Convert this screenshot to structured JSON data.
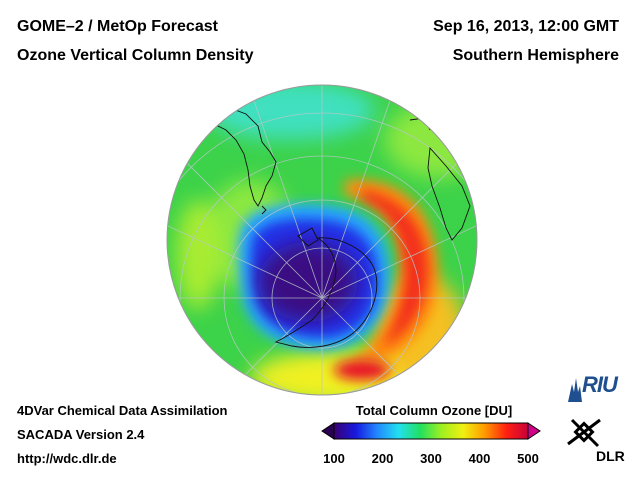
{
  "header": {
    "title_line1": "GOME–2 / MetOp Forecast",
    "title_line2": "Ozone Vertical Column Density",
    "date": "Sep 16, 2013, 12:00 GMT",
    "region": "Southern Hemisphere"
  },
  "footer": {
    "system": "4DVar Chemical Data Assimilation",
    "version": "SACADA Version 2.4",
    "url": "http://wdc.dlr.de"
  },
  "colorbar": {
    "title": "Total Column Ozone [DU]",
    "min": 100,
    "max": 500,
    "ticks": [
      "100",
      "200",
      "300",
      "400",
      "500"
    ],
    "colors": [
      "#3a0070",
      "#1818e0",
      "#2288ff",
      "#22e0f0",
      "#22e060",
      "#a0f020",
      "#f0f010",
      "#ff9900",
      "#ff2010",
      "#c8003a"
    ]
  },
  "map": {
    "projection": "polar orthographic",
    "field_regions": [
      {
        "label": "ozone hole",
        "ozone_du": 140
      },
      {
        "label": "hole edge",
        "ozone_du": 220
      },
      {
        "label": "mid latitudes",
        "ozone_du": 300
      },
      {
        "label": "collar maximum",
        "ozone_du": 420
      },
      {
        "label": "collar peak",
        "ozone_du": 470
      }
    ]
  },
  "logos": {
    "riu": "RIU",
    "dlr": "DLR"
  }
}
